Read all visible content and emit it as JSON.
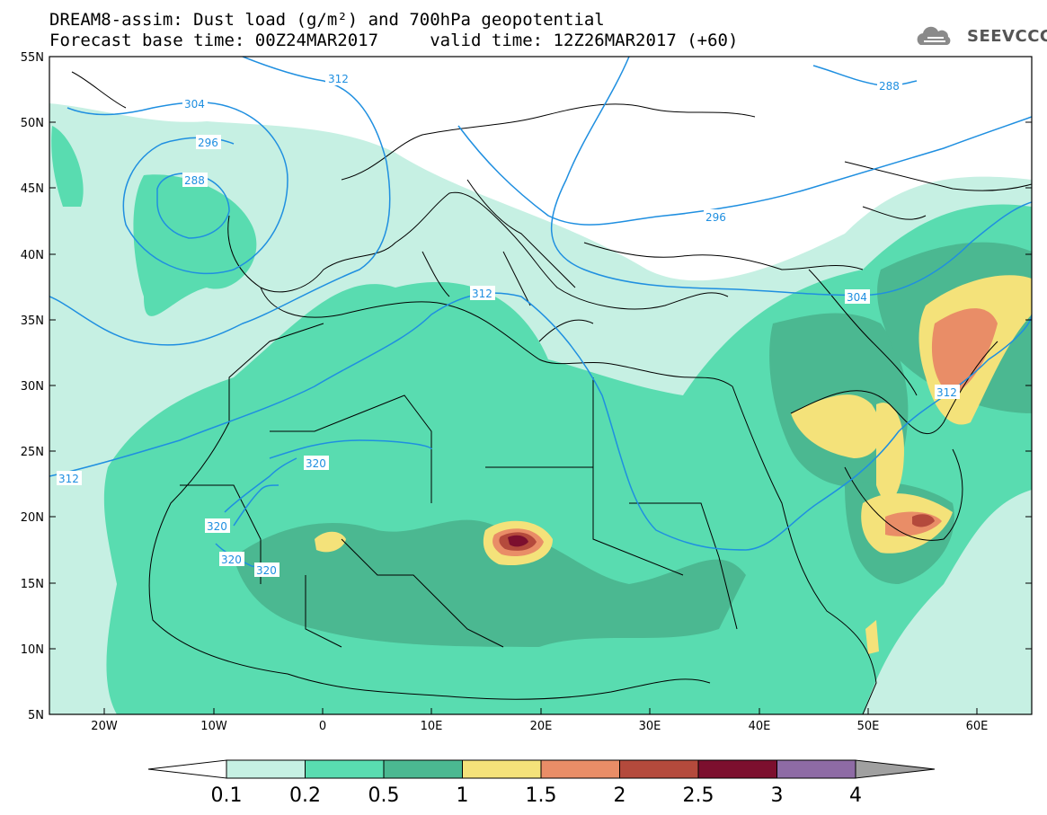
{
  "title": {
    "line1": "DREAM8-assim: Dust load (g/m²) and 700hPa geopotential",
    "line2": "Forecast base time: 00Z24MAR2017     valid time: 12Z26MAR2017 (+60)"
  },
  "logo": {
    "text": "SEEVCCC",
    "icon": "cloud-icon"
  },
  "axes": {
    "lat_labels": [
      "55N",
      "50N",
      "45N",
      "40N",
      "35N",
      "30N",
      "25N",
      "20N",
      "15N",
      "10N",
      "5N"
    ],
    "lon_labels": [
      "20W",
      "10W",
      "0",
      "10E",
      "20E",
      "30E",
      "40E",
      "50E",
      "60E"
    ]
  },
  "contour_labels": [
    "312",
    "304",
    "296",
    "288",
    "296",
    "288",
    "304",
    "312",
    "320",
    "320",
    "320",
    "320",
    "312",
    "312"
  ],
  "colorbar": {
    "labels": [
      "0.1",
      "0.2",
      "0.5",
      "1",
      "1.5",
      "2",
      "2.5",
      "3",
      "4"
    ],
    "colors": [
      "#c6f0e3",
      "#59dcb0",
      "#4bb891",
      "#f4e27a",
      "#e98d67",
      "#b44a3c",
      "#7c0f2e",
      "#8e6ba5"
    ],
    "under_color": "#ffffff",
    "over_color": "#a0a0a0"
  },
  "colors": {
    "contour": "#1f8fe0",
    "land_outline": "#000000"
  }
}
